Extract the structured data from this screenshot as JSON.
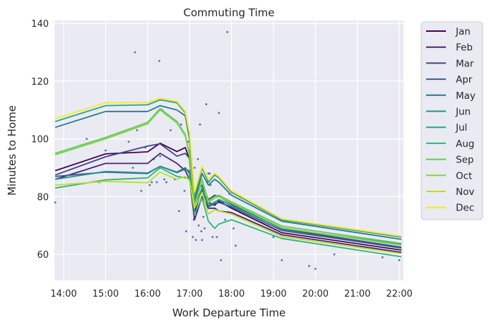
{
  "chart_data": {
    "type": "line",
    "title": "Commuting Time",
    "xlabel": "Work Departure Time",
    "ylabel": "Minutes to Home",
    "x_unit": "hour of day",
    "xlim": [
      13.78,
      22.1
    ],
    "ylim": [
      51,
      141
    ],
    "x_ticks": [
      14,
      15,
      16,
      17,
      18,
      19,
      20,
      21,
      22
    ],
    "x_tick_labels": [
      "14:00",
      "15:00",
      "16:00",
      "17:00",
      "18:00",
      "19:00",
      "20:00",
      "21:00",
      "22:00"
    ],
    "y_ticks": [
      60,
      80,
      100,
      120,
      140
    ],
    "grid": true,
    "legend_position": "outside right",
    "scatter_points": [
      [
        13.8,
        78
      ],
      [
        14.55,
        100
      ],
      [
        14.85,
        85
      ],
      [
        15.0,
        96
      ],
      [
        15.55,
        99
      ],
      [
        15.65,
        90
      ],
      [
        15.7,
        130
      ],
      [
        15.75,
        103
      ],
      [
        15.85,
        82
      ],
      [
        15.95,
        97
      ],
      [
        16.05,
        84
      ],
      [
        16.1,
        85
      ],
      [
        16.15,
        93
      ],
      [
        16.22,
        85
      ],
      [
        16.28,
        127
      ],
      [
        16.3,
        94
      ],
      [
        16.35,
        110
      ],
      [
        16.4,
        86
      ],
      [
        16.45,
        85
      ],
      [
        16.55,
        103
      ],
      [
        16.65,
        86
      ],
      [
        16.75,
        75
      ],
      [
        16.8,
        105
      ],
      [
        16.88,
        82
      ],
      [
        16.92,
        68
      ],
      [
        16.97,
        99
      ],
      [
        17.02,
        96
      ],
      [
        17.05,
        93
      ],
      [
        17.08,
        66
      ],
      [
        17.1,
        72
      ],
      [
        17.12,
        90
      ],
      [
        17.15,
        65
      ],
      [
        17.18,
        75
      ],
      [
        17.2,
        93
      ],
      [
        17.22,
        70
      ],
      [
        17.25,
        105
      ],
      [
        17.28,
        68
      ],
      [
        17.3,
        65
      ],
      [
        17.33,
        73
      ],
      [
        17.36,
        69
      ],
      [
        17.4,
        112
      ],
      [
        17.42,
        85
      ],
      [
        17.45,
        88
      ],
      [
        17.48,
        88
      ],
      [
        17.5,
        84
      ],
      [
        17.55,
        66
      ],
      [
        17.6,
        78
      ],
      [
        17.65,
        66
      ],
      [
        17.7,
        109
      ],
      [
        17.75,
        58
      ],
      [
        17.8,
        78
      ],
      [
        17.85,
        72
      ],
      [
        17.9,
        137
      ],
      [
        17.95,
        81
      ],
      [
        18.05,
        69
      ],
      [
        18.1,
        63
      ],
      [
        19.0,
        66
      ],
      [
        19.2,
        58
      ],
      [
        19.85,
        56
      ],
      [
        20.0,
        55
      ],
      [
        20.45,
        60
      ],
      [
        21.6,
        59
      ],
      [
        22.0,
        58
      ]
    ],
    "series": [
      {
        "name": "Jan",
        "color": "#440154",
        "points": [
          [
            13.8,
            89
          ],
          [
            15.0,
            94.8
          ],
          [
            16.0,
            95.5
          ],
          [
            16.3,
            98.5
          ],
          [
            16.7,
            95.6
          ],
          [
            16.9,
            97
          ],
          [
            17.0,
            93
          ],
          [
            17.12,
            75
          ],
          [
            17.3,
            82
          ],
          [
            17.45,
            78
          ],
          [
            17.6,
            77
          ],
          [
            17.7,
            78.5
          ],
          [
            18.0,
            76
          ],
          [
            19.2,
            67.5
          ],
          [
            22.05,
            61.5
          ]
        ]
      },
      {
        "name": "Feb",
        "color": "#482475",
        "points": [
          [
            13.8,
            86
          ],
          [
            15.0,
            91.5
          ],
          [
            16.0,
            91.5
          ],
          [
            16.3,
            95
          ],
          [
            16.7,
            91.5
          ],
          [
            16.9,
            89
          ],
          [
            17.0,
            86
          ],
          [
            17.12,
            72
          ],
          [
            17.3,
            80
          ],
          [
            17.45,
            76
          ],
          [
            17.6,
            76
          ],
          [
            17.7,
            75
          ],
          [
            18.0,
            74.5
          ],
          [
            19.2,
            66.8
          ],
          [
            22.05,
            60.7
          ]
        ]
      },
      {
        "name": "Mar",
        "color": "#414487",
        "points": [
          [
            13.8,
            87.5
          ],
          [
            15.0,
            93.8
          ],
          [
            16.0,
            97.5
          ],
          [
            16.3,
            98.3
          ],
          [
            16.7,
            94
          ],
          [
            16.9,
            95
          ],
          [
            17.0,
            93.3
          ],
          [
            17.12,
            80.5
          ],
          [
            17.3,
            84
          ],
          [
            17.45,
            79
          ],
          [
            17.6,
            80.5
          ],
          [
            17.7,
            80
          ],
          [
            18.0,
            77.5
          ],
          [
            19.2,
            68.8
          ],
          [
            22.05,
            62.5
          ]
        ]
      },
      {
        "name": "Apr",
        "color": "#355f8d",
        "points": [
          [
            13.8,
            87
          ],
          [
            15.0,
            88.5
          ],
          [
            16.0,
            88
          ],
          [
            16.3,
            90.5
          ],
          [
            16.7,
            88.5
          ],
          [
            16.9,
            90
          ],
          [
            17.0,
            88
          ],
          [
            17.12,
            77
          ],
          [
            17.3,
            82.5
          ],
          [
            17.45,
            76.5
          ],
          [
            17.6,
            77.5
          ],
          [
            17.7,
            78
          ],
          [
            18.0,
            76.5
          ],
          [
            19.2,
            68.3
          ],
          [
            22.05,
            62.2
          ]
        ]
      },
      {
        "name": "May",
        "color": "#2a788e",
        "points": [
          [
            13.8,
            104
          ],
          [
            15.0,
            109.5
          ],
          [
            16.0,
            109.5
          ],
          [
            16.3,
            111.5
          ],
          [
            16.7,
            110
          ],
          [
            16.9,
            108
          ],
          [
            17.0,
            100
          ],
          [
            17.12,
            78.5
          ],
          [
            17.3,
            88
          ],
          [
            17.45,
            84
          ],
          [
            17.6,
            86
          ],
          [
            17.7,
            85
          ],
          [
            18.0,
            80.5
          ],
          [
            19.2,
            71.5
          ],
          [
            22.05,
            65.2
          ]
        ]
      },
      {
        "name": "Jun",
        "color": "#21918c",
        "points": [
          [
            13.8,
            86
          ],
          [
            15.0,
            88.7
          ],
          [
            16.0,
            88.2
          ],
          [
            16.3,
            90.5
          ],
          [
            16.7,
            88.3
          ],
          [
            16.9,
            89.5
          ],
          [
            17.0,
            89
          ],
          [
            17.12,
            76
          ],
          [
            17.3,
            83
          ],
          [
            17.45,
            77
          ],
          [
            17.6,
            78
          ],
          [
            17.7,
            79
          ],
          [
            18.0,
            77
          ],
          [
            19.2,
            69
          ],
          [
            22.05,
            63.5
          ]
        ]
      },
      {
        "name": "Jul",
        "color": "#22a884",
        "points": [
          [
            13.8,
            106
          ],
          [
            15.0,
            111.5
          ],
          [
            16.0,
            111.8
          ],
          [
            16.3,
            113.5
          ],
          [
            16.7,
            112.5
          ],
          [
            16.9,
            109
          ],
          [
            17.0,
            101
          ],
          [
            17.12,
            80
          ],
          [
            17.3,
            90
          ],
          [
            17.45,
            85
          ],
          [
            17.6,
            87.5
          ],
          [
            17.7,
            86.5
          ],
          [
            18.0,
            81.5
          ],
          [
            19.2,
            72
          ],
          [
            22.05,
            66
          ]
        ]
      },
      {
        "name": "Aug",
        "color": "#2fb47c",
        "points": [
          [
            13.8,
            83
          ],
          [
            15.0,
            85.8
          ],
          [
            16.0,
            86.5
          ],
          [
            16.3,
            90
          ],
          [
            16.7,
            87
          ],
          [
            16.9,
            86.5
          ],
          [
            17.0,
            86.5
          ],
          [
            17.12,
            74
          ],
          [
            17.3,
            79.5
          ],
          [
            17.45,
            71.5
          ],
          [
            17.6,
            69
          ],
          [
            17.7,
            70.5
          ],
          [
            18.0,
            72
          ],
          [
            19.2,
            65.5
          ],
          [
            22.05,
            59.2
          ]
        ]
      },
      {
        "name": "Sep",
        "color": "#5ec962",
        "points": [
          [
            13.8,
            95
          ],
          [
            15.0,
            100.5
          ],
          [
            16.0,
            105.7
          ],
          [
            16.3,
            110.5
          ],
          [
            16.7,
            106
          ],
          [
            16.9,
            101.5
          ],
          [
            17.0,
            95
          ],
          [
            17.12,
            77
          ],
          [
            17.3,
            86
          ],
          [
            17.45,
            78.5
          ],
          [
            17.6,
            80
          ],
          [
            17.7,
            80.5
          ],
          [
            18.0,
            78.2
          ],
          [
            19.2,
            69.8
          ],
          [
            22.05,
            63.8
          ]
        ]
      },
      {
        "name": "Oct",
        "color": "#84d44b",
        "points": [
          [
            13.8,
            94.5
          ],
          [
            15.0,
            100
          ],
          [
            16.0,
            105.2
          ],
          [
            16.3,
            110
          ],
          [
            16.7,
            105.5
          ],
          [
            16.9,
            101
          ],
          [
            17.0,
            94
          ],
          [
            17.12,
            76.5
          ],
          [
            17.3,
            85.5
          ],
          [
            17.45,
            78
          ],
          [
            17.6,
            79.5
          ],
          [
            17.7,
            80
          ],
          [
            18.0,
            77.8
          ],
          [
            19.2,
            69.2
          ],
          [
            22.05,
            63.2
          ]
        ]
      },
      {
        "name": "Nov",
        "color": "#bddf26",
        "points": [
          [
            13.8,
            84
          ],
          [
            15.0,
            85.3
          ],
          [
            16.0,
            84.8
          ],
          [
            16.3,
            88.5
          ],
          [
            16.7,
            86
          ],
          [
            16.9,
            87
          ],
          [
            17.0,
            85.5
          ],
          [
            17.12,
            76
          ],
          [
            17.3,
            81.5
          ],
          [
            17.45,
            74
          ],
          [
            17.6,
            75.5
          ],
          [
            17.7,
            75
          ],
          [
            18.0,
            74
          ],
          [
            19.2,
            66.2
          ],
          [
            22.05,
            60.3
          ]
        ]
      },
      {
        "name": "Dec",
        "color": "#fde725",
        "points": [
          [
            13.8,
            107
          ],
          [
            15.0,
            112.5
          ],
          [
            16.0,
            112.6
          ],
          [
            16.3,
            114
          ],
          [
            16.7,
            113
          ],
          [
            16.9,
            109.5
          ],
          [
            17.0,
            102
          ],
          [
            17.12,
            81.5
          ],
          [
            17.3,
            90.5
          ],
          [
            17.45,
            86
          ],
          [
            17.6,
            88
          ],
          [
            17.7,
            87
          ],
          [
            18.0,
            82
          ],
          [
            19.2,
            72.3
          ],
          [
            22.05,
            66.3
          ]
        ]
      }
    ]
  }
}
